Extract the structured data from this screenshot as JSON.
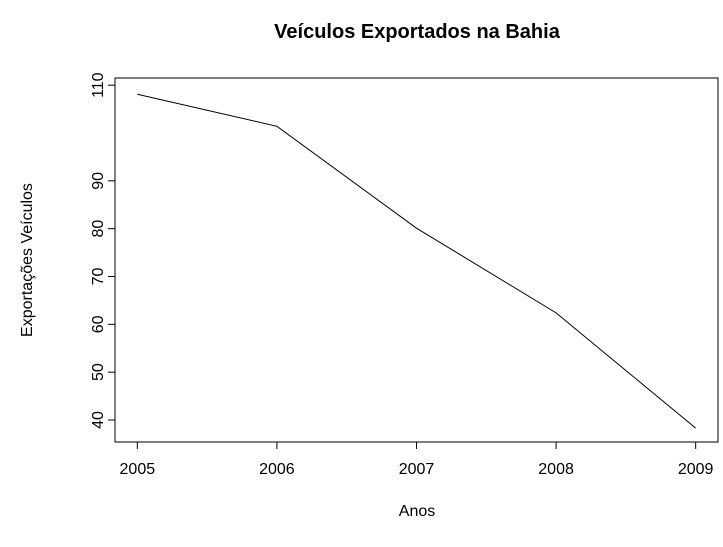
{
  "chart_data": {
    "type": "line",
    "title": "Veículos Exportados na Bahia",
    "xlabel": "Anos",
    "ylabel": "Exportações Veículos",
    "x": [
      2005,
      2006,
      2007,
      2008,
      2009
    ],
    "values": [
      108.1,
      101.4,
      80.1,
      62.4,
      38.3
    ],
    "color": "#000000",
    "xlim": [
      2004.84,
      2009.16
    ],
    "xticks": [
      2005,
      2006,
      2007,
      2008,
      2009
    ],
    "ylim": [
      35.4,
      111.5
    ],
    "yticks": [
      40,
      50,
      60,
      70,
      80,
      90,
      110
    ]
  }
}
